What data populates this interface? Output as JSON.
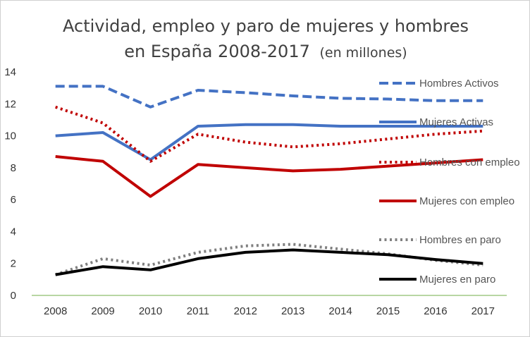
{
  "chart_data": {
    "type": "line",
    "title_line1": "Actividad, empleo y paro de mujeres y hombres",
    "title_line2": "en España 2008-2017",
    "title_suffix": "(en millones)",
    "xlabel": "",
    "ylabel": "",
    "ylim": [
      0,
      14
    ],
    "yticks": [
      0,
      2,
      4,
      6,
      8,
      10,
      12,
      14
    ],
    "categories": [
      "2008",
      "2009",
      "2010",
      "2011",
      "2012",
      "2013",
      "2014",
      "2015",
      "2016",
      "2017"
    ],
    "grid": false,
    "legend_position": "right",
    "series": [
      {
        "name": "Hombres Activos",
        "color": "#4472C4",
        "style": "dashed",
        "values": [
          13.1,
          13.1,
          11.8,
          12.85,
          12.7,
          12.5,
          12.35,
          12.3,
          12.2,
          12.2
        ]
      },
      {
        "name": "Mujeres Activas",
        "color": "#4472C4",
        "style": "solid",
        "values": [
          10.0,
          10.2,
          8.5,
          10.6,
          10.7,
          10.7,
          10.6,
          10.6,
          10.6,
          10.6
        ]
      },
      {
        "name": "Hombres con empleo",
        "color": "#C00000",
        "style": "dotted",
        "values": [
          11.8,
          10.8,
          8.4,
          10.1,
          9.6,
          9.3,
          9.5,
          9.8,
          10.1,
          10.3
        ]
      },
      {
        "name": "Mujeres con empleo",
        "color": "#C00000",
        "style": "solid",
        "values": [
          8.7,
          8.4,
          6.2,
          8.2,
          8.0,
          7.8,
          7.9,
          8.1,
          8.3,
          8.5
        ]
      },
      {
        "name": "Hombres en paro",
        "color": "#808080",
        "style": "dotted",
        "values": [
          1.3,
          2.3,
          1.9,
          2.7,
          3.1,
          3.2,
          2.9,
          2.6,
          2.2,
          1.9
        ]
      },
      {
        "name": "Mujeres en paro",
        "color": "#000000",
        "style": "solid",
        "values": [
          1.3,
          1.8,
          1.6,
          2.3,
          2.7,
          2.85,
          2.7,
          2.55,
          2.25,
          2.0
        ]
      }
    ]
  }
}
